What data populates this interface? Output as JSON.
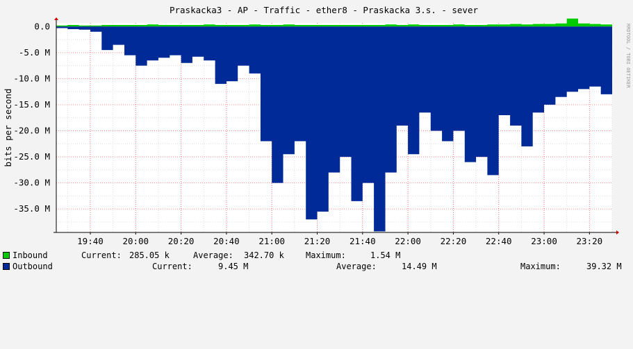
{
  "chart_data": {
    "type": "area",
    "title": "Praskacka3 - AP - Traffic - ether8 - Praskacka 3.s. - sever",
    "ylabel": "bits per second",
    "watermark": "RRDTOOL / TOBI OETIKER",
    "x_ticks": [
      "19:40",
      "20:00",
      "20:20",
      "20:40",
      "21:00",
      "21:20",
      "21:40",
      "22:00",
      "22:20",
      "22:40",
      "23:00",
      "23:20"
    ],
    "y_ticks": [
      {
        "value": 0,
        "label": "0.0"
      },
      {
        "value": -5,
        "label": "-5.0 M"
      },
      {
        "value": -10,
        "label": "-10.0 M"
      },
      {
        "value": -15,
        "label": "-15.0 M"
      },
      {
        "value": -20,
        "label": "-20.0 M"
      },
      {
        "value": -25,
        "label": "-25.0 M"
      },
      {
        "value": -30,
        "label": "-30.0 M"
      },
      {
        "value": -35,
        "label": "-35.0 M"
      }
    ],
    "ylim": [
      -39.5,
      0.7
    ],
    "xlim_minutes": [
      1165,
      1410
    ],
    "grid": true,
    "colors": {
      "inbound": "#00cc00",
      "outbound": "#002a97",
      "grid": "#ff0000",
      "background": "#ffffff"
    },
    "series": [
      {
        "name": "Inbound",
        "unit": "Mbit/s",
        "x": [
          1165,
          1170,
          1175,
          1180,
          1185,
          1190,
          1195,
          1200,
          1205,
          1210,
          1215,
          1220,
          1225,
          1230,
          1235,
          1240,
          1245,
          1250,
          1255,
          1260,
          1265,
          1270,
          1275,
          1280,
          1285,
          1290,
          1295,
          1300,
          1305,
          1310,
          1315,
          1320,
          1325,
          1330,
          1335,
          1340,
          1345,
          1350,
          1355,
          1360,
          1365,
          1370,
          1375,
          1380,
          1385,
          1390,
          1395,
          1400,
          1405,
          1410
        ],
        "values": [
          0.2,
          0.3,
          0.2,
          0.2,
          0.3,
          0.3,
          0.3,
          0.3,
          0.4,
          0.3,
          0.3,
          0.3,
          0.3,
          0.4,
          0.3,
          0.3,
          0.3,
          0.4,
          0.3,
          0.3,
          0.4,
          0.3,
          0.3,
          0.3,
          0.3,
          0.3,
          0.3,
          0.3,
          0.3,
          0.4,
          0.3,
          0.4,
          0.3,
          0.3,
          0.3,
          0.4,
          0.3,
          0.3,
          0.4,
          0.4,
          0.5,
          0.4,
          0.5,
          0.5,
          0.6,
          1.54,
          0.6,
          0.5,
          0.4,
          0.29
        ]
      },
      {
        "name": "Outbound",
        "unit": "Mbit/s",
        "x": [
          1165,
          1170,
          1175,
          1180,
          1185,
          1190,
          1195,
          1200,
          1205,
          1210,
          1215,
          1220,
          1225,
          1230,
          1235,
          1240,
          1245,
          1250,
          1255,
          1260,
          1265,
          1270,
          1275,
          1280,
          1285,
          1290,
          1295,
          1300,
          1305,
          1310,
          1315,
          1320,
          1325,
          1330,
          1335,
          1340,
          1345,
          1350,
          1355,
          1360,
          1365,
          1370,
          1375,
          1380,
          1385,
          1390,
          1395,
          1400,
          1405,
          1410
        ],
        "values": [
          -0.3,
          -0.5,
          -0.6,
          -1.0,
          -4.5,
          -3.5,
          -5.5,
          -7.5,
          -6.5,
          -6.0,
          -5.5,
          -7.0,
          -5.8,
          -6.5,
          -11.0,
          -10.5,
          -7.5,
          -9.0,
          -22.0,
          -30.0,
          -24.5,
          -22.0,
          -37.0,
          -35.5,
          -28.0,
          -25.0,
          -33.5,
          -30.0,
          -39.3,
          -28.0,
          -19.0,
          -24.5,
          -16.5,
          -20.0,
          -22.0,
          -20.0,
          -26.0,
          -25.0,
          -28.5,
          -17.0,
          -19.0,
          -23.0,
          -16.5,
          -15.0,
          -13.5,
          -12.5,
          -12.0,
          -11.5,
          -13.0,
          -9.5
        ]
      }
    ]
  },
  "legend": {
    "inbound": {
      "label": "Inbound",
      "current_label": "Current:",
      "current": "285.05 k",
      "average_label": "Average:",
      "average": "342.70 k",
      "maximum_label": "Maximum:",
      "maximum": "1.54 M"
    },
    "outbound": {
      "label": "Outbound",
      "current_label": "Current:",
      "current": "9.45 M",
      "average_label": "Average:",
      "average": "14.49 M",
      "maximum_label": "Maximum:",
      "maximum": "39.32 M"
    }
  }
}
